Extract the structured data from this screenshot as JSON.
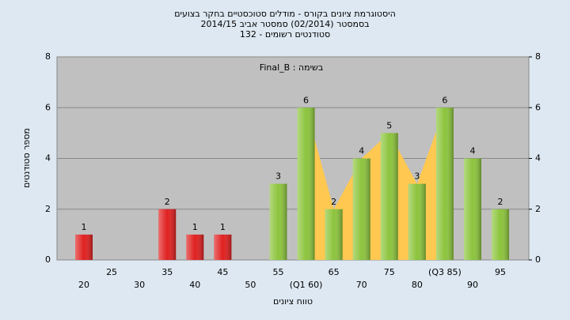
{
  "chart_data": {
    "type": "bar",
    "title": "היסטוגרמת ציונים בקורס - מודלים סטוכסטיים בחקר בצועים",
    "subtitle": "בסמסטר  (02/2014)  סמסטר אביב 2014/15",
    "subtitle2": "סטודנטים רשומים - 132",
    "annotation": "Final_B : בשימה",
    "x_label": "טווח ציונים",
    "y_label": "מספר סטודנטים",
    "categories": [
      "20",
      "25",
      "30",
      "35",
      "40",
      "45",
      "50",
      "55",
      "(Q1 60)",
      "65",
      "70",
      "75",
      "80",
      "(Q3 85)",
      "90",
      "95"
    ],
    "values": [
      1,
      0,
      0,
      2,
      1,
      1,
      0,
      3,
      6,
      2,
      4,
      5,
      3,
      6,
      4,
      2
    ],
    "colors": [
      "#e02020",
      "#e02020",
      "#e02020",
      "#e02020",
      "#e02020",
      "#e02020",
      "#e02020",
      "#8cc43c",
      "#8cc43c",
      "#8cc43c",
      "#8cc43c",
      "#8cc43c",
      "#8cc43c",
      "#8cc43c",
      "#8cc43c",
      "#8cc43c"
    ],
    "quartile_area_color": "#ffc850",
    "ylim": [
      0,
      8
    ],
    "yticks": [
      0,
      2,
      4,
      6,
      8
    ],
    "y2lim": [
      0,
      8
    ],
    "y2ticks": [
      0,
      2,
      4,
      6,
      8
    ],
    "grid": true
  }
}
